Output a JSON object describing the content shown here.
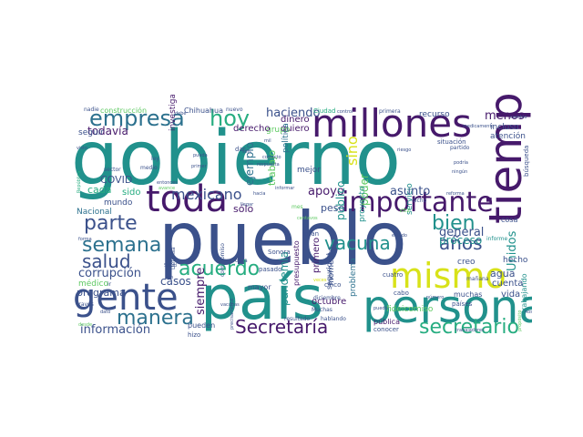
{
  "colors": {
    "purple": "#46196b",
    "indigo": "#3b518b",
    "blue": "#2c718e",
    "teal": "#21918c",
    "green": "#27ad81",
    "lime": "#5ec962",
    "yellow": "#d8e219"
  },
  "words": [
    {
      "text": "gobierno",
      "color": "teal"
    },
    {
      "text": "pueblo",
      "color": "indigo"
    },
    {
      "text": "país",
      "color": "teal"
    },
    {
      "text": "millones",
      "color": "purple"
    },
    {
      "text": "tiempo",
      "color": "purple"
    },
    {
      "text": "persona",
      "color": "teal"
    },
    {
      "text": "mismo",
      "color": "yellow"
    },
    {
      "text": "gente",
      "color": "indigo"
    },
    {
      "text": "toda",
      "color": "purple"
    },
    {
      "text": "importante",
      "color": "purple"
    },
    {
      "text": "empresa",
      "color": "blue"
    },
    {
      "text": "hoy",
      "color": "green"
    },
    {
      "text": "manera",
      "color": "blue"
    },
    {
      "text": "acuerdo",
      "color": "green"
    },
    {
      "text": "Secretaría",
      "color": "purple"
    },
    {
      "text": "secretario",
      "color": "green"
    },
    {
      "text": "semana",
      "color": "blue"
    },
    {
      "text": "parte",
      "color": "indigo"
    },
    {
      "text": "salud",
      "color": "indigo"
    },
    {
      "text": "bien",
      "color": "teal"
    },
    {
      "text": "años",
      "color": "indigo"
    },
    {
      "text": "vacuna",
      "color": "teal"
    },
    {
      "text": "mexicano",
      "color": "indigo"
    },
    {
      "text": "sino",
      "color": "yellow"
    },
    {
      "text": "menos",
      "color": "purple"
    },
    {
      "text": "haciendo",
      "color": "indigo"
    },
    {
      "text": "todavía",
      "color": "purple"
    },
    {
      "text": "corrupción",
      "color": "indigo"
    },
    {
      "text": "información",
      "color": "indigo"
    },
    {
      "text": "general",
      "color": "indigo"
    },
    {
      "text": "proceso",
      "color": "teal"
    },
    {
      "text": "agua",
      "color": "indigo"
    },
    {
      "text": "casos",
      "color": "indigo"
    },
    {
      "text": "apoyo",
      "color": "purple"
    },
    {
      "text": "asunto",
      "color": "indigo"
    },
    {
      "text": "ejemplo",
      "color": "blue"
    },
    {
      "text": "siempre",
      "color": "purple"
    },
    {
      "text": "pandemia",
      "color": "teal"
    },
    {
      "text": "Unidos",
      "color": "teal"
    },
    {
      "text": "poder",
      "color": "lime"
    },
    {
      "text": "público",
      "color": "teal"
    },
    {
      "text": "trabajo",
      "color": "lime"
    },
    {
      "text": "peso",
      "color": "indigo"
    },
    {
      "text": "sólo",
      "color": "purple"
    },
    {
      "text": "COVID",
      "color": "indigo"
    },
    {
      "text": "programa",
      "color": "indigo"
    },
    {
      "text": "cada",
      "color": "green"
    },
    {
      "text": "sido",
      "color": "green"
    },
    {
      "text": "primero",
      "color": "purple"
    },
    {
      "text": "octubre",
      "color": "purple"
    },
    {
      "text": "cuenta",
      "color": "indigo"
    },
    {
      "text": "vida",
      "color": "indigo"
    },
    {
      "text": "hecho",
      "color": "indigo"
    },
    {
      "text": "dinero",
      "color": "purple"
    },
    {
      "text": "quiero",
      "color": "purple"
    },
    {
      "text": "grupo",
      "color": "lime"
    },
    {
      "text": "política",
      "color": "blue"
    },
    {
      "text": "derecho",
      "color": "purple"
    },
    {
      "text": "recurso",
      "color": "indigo"
    },
    {
      "text": "incluso",
      "color": "indigo"
    },
    {
      "text": "atención",
      "color": "indigo"
    },
    {
      "text": "seguir",
      "color": "indigo"
    },
    {
      "text": "Nacional",
      "color": "blue"
    },
    {
      "text": "mundo",
      "color": "indigo"
    },
    {
      "text": "médico",
      "color": "lime"
    },
    {
      "text": "mejor",
      "color": "indigo"
    },
    {
      "text": "mayor",
      "color": "indigo"
    },
    {
      "text": "Chihuahua",
      "color": "indigo"
    },
    {
      "text": "construcción",
      "color": "lime"
    },
    {
      "text": "investigación",
      "color": "purple"
    },
    {
      "text": "servicio",
      "color": "teal"
    },
    {
      "text": "proyecto",
      "color": "teal"
    },
    {
      "text": "momento",
      "color": "indigo"
    },
    {
      "text": "problema",
      "color": "blue"
    },
    {
      "text": "creo",
      "color": "indigo"
    },
    {
      "text": "cosa",
      "color": "indigo"
    },
    {
      "text": "muchas",
      "color": "indigo"
    },
    {
      "text": "fideicomiso",
      "color": "lime"
    },
    {
      "text": "pública",
      "color": "purple"
    },
    {
      "text": "seguridad",
      "color": "indigo"
    },
    {
      "text": "presupuesto",
      "color": "purple"
    },
    {
      "text": "pueden",
      "color": "indigo"
    },
    {
      "text": "hizo",
      "color": "indigo"
    },
    {
      "text": "conocer",
      "color": "indigo"
    },
    {
      "text": "países",
      "color": "indigo"
    },
    {
      "text": "trabajando",
      "color": "teal"
    },
    {
      "text": "situación",
      "color": "indigo"
    },
    {
      "text": "búsqueda",
      "color": "indigo"
    },
    {
      "text": "Ciudad",
      "color": "green"
    },
    {
      "text": "primera",
      "color": "indigo"
    },
    {
      "text": "nuevo",
      "color": "indigo"
    },
    {
      "text": "nadie",
      "color": "indigo"
    },
    {
      "text": "pasado",
      "color": "indigo"
    },
    {
      "text": "Sonora",
      "color": "indigo"
    },
    {
      "text": "dar",
      "color": "indigo"
    },
    {
      "text": "medio",
      "color": "indigo"
    },
    {
      "text": "cuatro",
      "color": "indigo"
    },
    {
      "text": "cinco",
      "color": "indigo"
    },
    {
      "text": "gran",
      "color": "indigo"
    },
    {
      "text": "vez",
      "color": "lime"
    },
    {
      "text": "dicho",
      "color": "indigo"
    },
    {
      "text": "cabo",
      "color": "indigo"
    },
    {
      "text": "mañana",
      "color": "indigo"
    },
    {
      "text": "informe",
      "color": "teal"
    },
    {
      "text": "resultado",
      "color": "indigo"
    },
    {
      "text": "hablando",
      "color": "indigo"
    },
    {
      "text": "Defensa",
      "color": "indigo"
    },
    {
      "text": "obra",
      "color": "indigo"
    },
    {
      "text": "compromiso",
      "color": "indigo"
    },
    {
      "text": "diciembre",
      "color": "indigo"
    },
    {
      "text": "Muchas",
      "color": "indigo"
    },
    {
      "text": "través",
      "color": "indigo"
    },
    {
      "text": "ir",
      "color": "indigo"
    },
    {
      "text": "ley",
      "color": "indigo"
    },
    {
      "text": "sector",
      "color": "indigo"
    },
    {
      "text": "partido",
      "color": "indigo"
    },
    {
      "text": "mes",
      "color": "lime"
    },
    {
      "text": "seis",
      "color": "indigo"
    },
    {
      "text": "Salud",
      "color": "indigo"
    },
    {
      "text": "cambio",
      "color": "indigo"
    },
    {
      "text": "podría",
      "color": "indigo"
    },
    {
      "text": "ningún",
      "color": "indigo"
    },
    {
      "text": "trabajadores",
      "color": "indigo"
    },
    {
      "text": "control",
      "color": "indigo"
    },
    {
      "text": "número",
      "color": "indigo"
    },
    {
      "text": "precisamente",
      "color": "indigo"
    },
    {
      "text": "informar",
      "color": "indigo"
    },
    {
      "text": "pueda",
      "color": "indigo"
    },
    {
      "text": "primer",
      "color": "indigo"
    },
    {
      "text": "entonces",
      "color": "indigo"
    },
    {
      "text": "avance",
      "color": "lime"
    },
    {
      "text": "centavos",
      "color": "lime"
    },
    {
      "text": "desde",
      "color": "lime"
    },
    {
      "text": "forma",
      "color": "indigo"
    },
    {
      "text": "dato",
      "color": "indigo"
    },
    {
      "text": "tan",
      "color": "indigo"
    },
    {
      "text": "debe",
      "color": "indigo"
    },
    {
      "text": "reforma",
      "color": "indigo"
    },
    {
      "text": "propósito",
      "color": "lime"
    },
    {
      "text": "República",
      "color": "green"
    },
    {
      "text": "medicamento",
      "color": "indigo"
    },
    {
      "text": "veces",
      "color": "yellow"
    },
    {
      "text": "riesgo",
      "color": "indigo"
    },
    {
      "text": "estado",
      "color": "indigo"
    },
    {
      "text": "hacia",
      "color": "indigo"
    },
    {
      "text": "puedo",
      "color": "indigo"
    },
    {
      "text": "visto",
      "color": "indigo"
    },
    {
      "text": "mil",
      "color": "indigo"
    },
    {
      "text": "vacunas",
      "color": "indigo"
    },
    {
      "text": "llegar",
      "color": "indigo"
    },
    {
      "text": "correcto",
      "color": "indigo"
    },
    {
      "text": "respuesta",
      "color": "indigo"
    },
    {
      "text": "hospitales",
      "color": "indigo"
    },
    {
      "text": "bueno",
      "color": "indigo"
    },
    {
      "text": "meses",
      "color": "lime"
    }
  ]
}
